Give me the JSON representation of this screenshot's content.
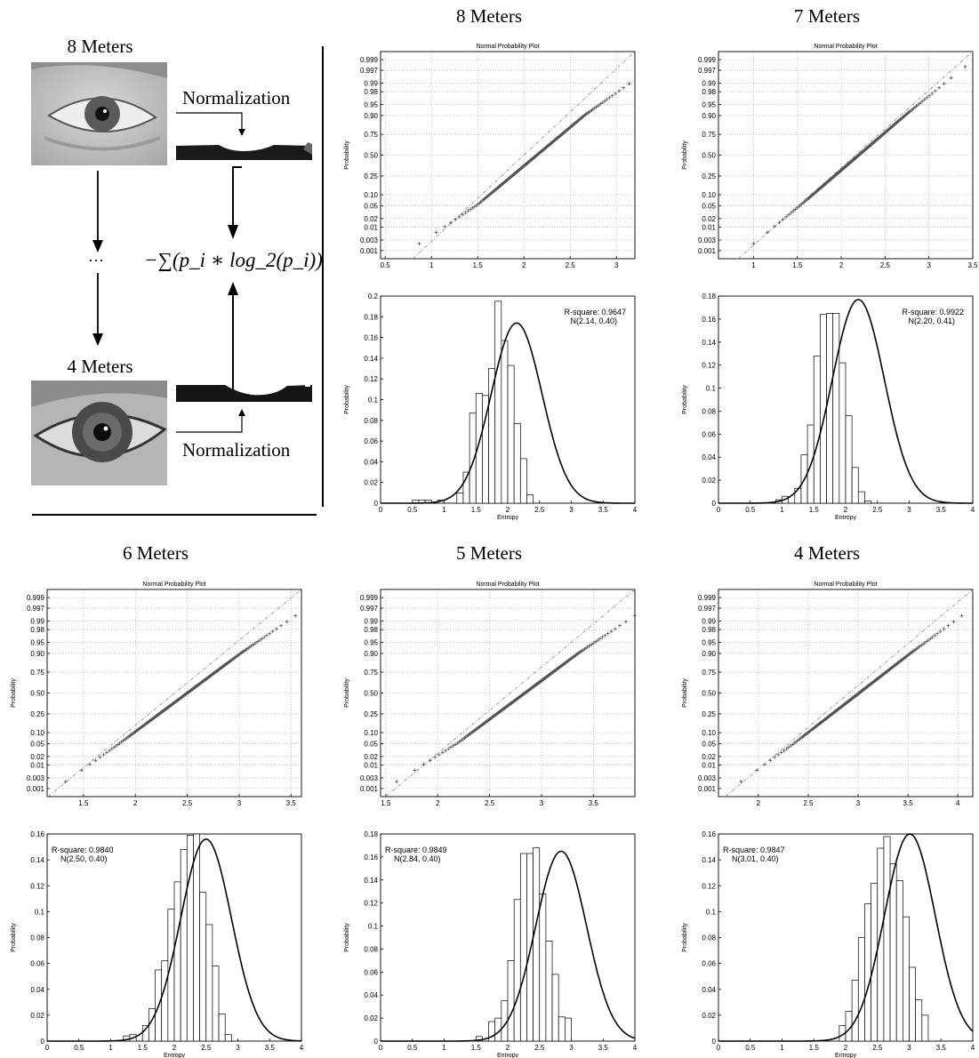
{
  "diagram": {
    "top_label": "8 Meters",
    "bottom_label": "4 Meters",
    "norm_top": "Normalization",
    "norm_bottom": "Normalization",
    "ellipsis": "···",
    "formula": "−∑(p_i ∗ log_2(p_i))"
  },
  "colors": {
    "ink": "#000000",
    "marker": "#555555",
    "refline": "#888888",
    "grid": "#999999"
  },
  "chart_data": [
    {
      "heading": "8 Meters",
      "type": "scatter",
      "title": "Normal Probability Plot",
      "ylabel": "Probability",
      "xlim": [
        0.45,
        3.2
      ],
      "xticks": [
        0.5,
        1,
        1.5,
        2,
        2.5,
        3
      ],
      "yticks": [
        0.001,
        0.003,
        0.01,
        0.02,
        0.05,
        0.1,
        0.25,
        0.5,
        0.75,
        0.9,
        0.95,
        0.98,
        0.99,
        0.997,
        0.999
      ],
      "ytick_labels": [
        "0.001",
        "0.003",
        "0.01",
        "0.02",
        "0.05",
        "0.10",
        "0.25",
        "0.50",
        "0.75",
        "0.90",
        "0.95",
        "0.98",
        "0.99",
        "0.997",
        "0.999"
      ],
      "fit": {
        "mean": 2.14,
        "sd": 0.4
      },
      "bend_high": 0.3,
      "bend_low": 0.5
    },
    {
      "heading": "",
      "type": "bar",
      "ylabel": "Probability",
      "xlabel": "Entropy",
      "xlim": [
        0,
        4
      ],
      "ylim": [
        0,
        0.2
      ],
      "xticks": [
        0,
        0.5,
        1,
        1.5,
        2,
        2.5,
        3,
        3.5,
        4
      ],
      "yticks": [
        0,
        0.02,
        0.04,
        0.06,
        0.08,
        0.1,
        0.12,
        0.14,
        0.16,
        0.18,
        0.2
      ],
      "ytick_labels": [
        "0",
        "0.02",
        "0.04",
        "0.06",
        "0.08",
        "0.1",
        "0.12",
        "0.14",
        "0.16",
        "0.18",
        "0.2"
      ],
      "annotation": [
        "R-square: 0.9647",
        "N(2.14, 0.40)"
      ],
      "annot_pos": "right",
      "bins": [
        {
          "x": 0.55,
          "h": 0.003
        },
        {
          "x": 0.65,
          "h": 0.003
        },
        {
          "x": 0.75,
          "h": 0.003
        },
        {
          "x": 0.85,
          "h": 0.0
        },
        {
          "x": 0.95,
          "h": 0.003
        },
        {
          "x": 1.05,
          "h": 0.0
        },
        {
          "x": 1.25,
          "h": 0.01
        },
        {
          "x": 1.35,
          "h": 0.03
        },
        {
          "x": 1.45,
          "h": 0.087
        },
        {
          "x": 1.55,
          "h": 0.106
        },
        {
          "x": 1.65,
          "h": 0.104
        },
        {
          "x": 1.75,
          "h": 0.13
        },
        {
          "x": 1.85,
          "h": 0.195
        },
        {
          "x": 1.95,
          "h": 0.157
        },
        {
          "x": 2.05,
          "h": 0.133
        },
        {
          "x": 2.15,
          "h": 0.077
        },
        {
          "x": 2.25,
          "h": 0.043
        },
        {
          "x": 2.35,
          "h": 0.008
        }
      ],
      "binw": 0.1,
      "curve": {
        "mean": 2.14,
        "sd": 0.4,
        "peak": 0.174
      }
    },
    {
      "heading": "7 Meters",
      "type": "scatter",
      "title": "Normal Probability Plot",
      "ylabel": "Probability",
      "xlim": [
        0.6,
        3.5
      ],
      "xticks": [
        1,
        1.5,
        2,
        2.5,
        3,
        3.5
      ],
      "yticks": [
        0.001,
        0.003,
        0.01,
        0.02,
        0.05,
        0.1,
        0.25,
        0.5,
        0.75,
        0.9,
        0.95,
        0.98,
        0.99,
        0.997,
        0.999
      ],
      "ytick_labels": [
        "0.001",
        "0.003",
        "0.01",
        "0.02",
        "0.05",
        "0.10",
        "0.25",
        "0.50",
        "0.75",
        "0.90",
        "0.95",
        "0.98",
        "0.99",
        "0.997",
        "0.999"
      ],
      "fit": {
        "mean": 2.2,
        "sd": 0.41
      },
      "bend_high": 0.1,
      "bend_low": 0.1
    },
    {
      "heading": "",
      "type": "bar",
      "ylabel": "Probability",
      "xlabel": "Entropy",
      "xlim": [
        0,
        4
      ],
      "ylim": [
        0,
        0.18
      ],
      "xticks": [
        0,
        0.5,
        1,
        1.5,
        2,
        2.5,
        3,
        3.5,
        4
      ],
      "yticks": [
        0,
        0.02,
        0.04,
        0.06,
        0.08,
        0.1,
        0.12,
        0.14,
        0.16,
        0.18
      ],
      "ytick_labels": [
        "0",
        "0.02",
        "0.04",
        "0.06",
        "0.08",
        "0.1",
        "0.12",
        "0.14",
        "0.16",
        "0.18"
      ],
      "annotation": [
        "R-square: 0.9922",
        "N(2.20, 0.41)"
      ],
      "annot_pos": "right",
      "bins": [
        {
          "x": 0.95,
          "h": 0.003
        },
        {
          "x": 1.05,
          "h": 0.006
        },
        {
          "x": 1.25,
          "h": 0.013
        },
        {
          "x": 1.35,
          "h": 0.042
        },
        {
          "x": 1.45,
          "h": 0.068
        },
        {
          "x": 1.55,
          "h": 0.128
        },
        {
          "x": 1.65,
          "h": 0.164
        },
        {
          "x": 1.75,
          "h": 0.165
        },
        {
          "x": 1.85,
          "h": 0.165
        },
        {
          "x": 1.95,
          "h": 0.122
        },
        {
          "x": 2.05,
          "h": 0.076
        },
        {
          "x": 2.15,
          "h": 0.031
        },
        {
          "x": 2.25,
          "h": 0.01
        },
        {
          "x": 2.35,
          "h": 0.002
        }
      ],
      "binw": 0.1,
      "curve": {
        "mean": 2.2,
        "sd": 0.41,
        "peak": 0.177
      }
    },
    {
      "heading": "6 Meters",
      "type": "scatter",
      "title": "Normal Probability Plot",
      "ylabel": "Probability",
      "xlim": [
        1.15,
        3.6
      ],
      "xticks": [
        1.5,
        2,
        2.5,
        3,
        3.5
      ],
      "yticks": [
        0.001,
        0.003,
        0.01,
        0.02,
        0.05,
        0.1,
        0.25,
        0.5,
        0.75,
        0.9,
        0.95,
        0.98,
        0.99,
        0.997,
        0.999
      ],
      "ytick_labels": [
        "0.001",
        "0.003",
        "0.01",
        "0.02",
        "0.05",
        "0.10",
        "0.25",
        "0.50",
        "0.75",
        "0.90",
        "0.95",
        "0.98",
        "0.99",
        "0.997",
        "0.999"
      ],
      "fit": {
        "mean": 2.5,
        "sd": 0.4
      },
      "bend_high": 0.15,
      "bend_low": 0.1
    },
    {
      "heading": "",
      "type": "bar",
      "ylabel": "Probability",
      "xlabel": "Entropy",
      "xlim": [
        0,
        4
      ],
      "ylim": [
        0,
        0.16
      ],
      "xticks": [
        0,
        0.5,
        1,
        1.5,
        2,
        2.5,
        3,
        3.5,
        4
      ],
      "yticks": [
        0,
        0.02,
        0.04,
        0.06,
        0.08,
        0.1,
        0.12,
        0.14,
        0.16
      ],
      "ytick_labels": [
        "0",
        "0.02",
        "0.04",
        "0.06",
        "0.08",
        "0.1",
        "0.12",
        "0.14",
        "0.16"
      ],
      "annotation": [
        "R-square: 0.9840",
        "N(2.50, 0.40)"
      ],
      "annot_pos": "left",
      "bins": [
        {
          "x": 1.25,
          "h": 0.004
        },
        {
          "x": 1.35,
          "h": 0.005
        },
        {
          "x": 1.55,
          "h": 0.012
        },
        {
          "x": 1.65,
          "h": 0.025
        },
        {
          "x": 1.75,
          "h": 0.055
        },
        {
          "x": 1.85,
          "h": 0.062
        },
        {
          "x": 1.95,
          "h": 0.102
        },
        {
          "x": 2.05,
          "h": 0.123
        },
        {
          "x": 2.15,
          "h": 0.148
        },
        {
          "x": 2.25,
          "h": 0.159
        },
        {
          "x": 2.35,
          "h": 0.16
        },
        {
          "x": 2.45,
          "h": 0.115
        },
        {
          "x": 2.55,
          "h": 0.09
        },
        {
          "x": 2.65,
          "h": 0.058
        },
        {
          "x": 2.75,
          "h": 0.021
        },
        {
          "x": 2.85,
          "h": 0.005
        }
      ],
      "binw": 0.1,
      "curve": {
        "mean": 2.5,
        "sd": 0.4,
        "peak": 0.156
      }
    },
    {
      "heading": "5 Meters",
      "type": "scatter",
      "title": "Normal Probability Plot",
      "ylabel": "Probability",
      "xlim": [
        1.45,
        3.9
      ],
      "xticks": [
        1.5,
        2,
        2.5,
        3,
        3.5
      ],
      "yticks": [
        0.001,
        0.003,
        0.01,
        0.02,
        0.05,
        0.1,
        0.25,
        0.5,
        0.75,
        0.9,
        0.95,
        0.98,
        0.99,
        0.997,
        0.999
      ],
      "ytick_labels": [
        "0.001",
        "0.003",
        "0.01",
        "0.02",
        "0.05",
        "0.10",
        "0.25",
        "0.50",
        "0.75",
        "0.90",
        "0.95",
        "0.98",
        "0.99",
        "0.997",
        "0.999"
      ],
      "fit": {
        "mean": 2.84,
        "sd": 0.4
      },
      "bend_high": 0.2,
      "bend_low": 0.35
    },
    {
      "heading": "",
      "type": "bar",
      "ylabel": "Probability",
      "xlabel": "Entropy",
      "xlim": [
        0,
        4
      ],
      "ylim": [
        0,
        0.18
      ],
      "xticks": [
        0,
        0.5,
        1,
        1.5,
        2,
        2.5,
        3,
        3.5,
        4
      ],
      "yticks": [
        0,
        0.02,
        0.04,
        0.06,
        0.08,
        0.1,
        0.12,
        0.14,
        0.16,
        0.18
      ],
      "ytick_labels": [
        "0",
        "0.02",
        "0.04",
        "0.06",
        "0.08",
        "0.1",
        "0.12",
        "0.14",
        "0.16",
        "0.18"
      ],
      "annotation": [
        "R-square: 0.9849",
        "N(2.84, 0.40)"
      ],
      "annot_pos": "left",
      "bins": [
        {
          "x": 1.55,
          "h": 0.004
        },
        {
          "x": 1.75,
          "h": 0.017
        },
        {
          "x": 1.85,
          "h": 0.02
        },
        {
          "x": 1.95,
          "h": 0.035
        },
        {
          "x": 2.05,
          "h": 0.07
        },
        {
          "x": 2.15,
          "h": 0.123
        },
        {
          "x": 2.25,
          "h": 0.163
        },
        {
          "x": 2.35,
          "h": 0.163
        },
        {
          "x": 2.45,
          "h": 0.168
        },
        {
          "x": 2.55,
          "h": 0.128
        },
        {
          "x": 2.65,
          "h": 0.087
        },
        {
          "x": 2.75,
          "h": 0.058
        },
        {
          "x": 2.85,
          "h": 0.021
        },
        {
          "x": 2.95,
          "h": 0.02
        }
      ],
      "binw": 0.1,
      "curve": {
        "mean": 2.84,
        "sd": 0.4,
        "peak": 0.165
      }
    },
    {
      "heading": "4 Meters",
      "type": "scatter",
      "title": "Normal Probability Plot",
      "ylabel": "Probability",
      "xlim": [
        1.6,
        4.15
      ],
      "xticks": [
        2,
        2.5,
        3,
        3.5,
        4
      ],
      "yticks": [
        0.001,
        0.003,
        0.01,
        0.02,
        0.05,
        0.1,
        0.25,
        0.5,
        0.75,
        0.9,
        0.95,
        0.98,
        0.99,
        0.997,
        0.999
      ],
      "ytick_labels": [
        "0.001",
        "0.003",
        "0.01",
        "0.02",
        "0.05",
        "0.10",
        "0.25",
        "0.50",
        "0.75",
        "0.90",
        "0.95",
        "0.98",
        "0.99",
        "0.997",
        "0.999"
      ],
      "fit": {
        "mean": 3.01,
        "sd": 0.4
      },
      "bend_high": 0.1,
      "bend_low": 0.15
    },
    {
      "heading": "",
      "type": "bar",
      "ylabel": "Probability",
      "xlabel": "Entropy",
      "xlim": [
        0,
        4
      ],
      "ylim": [
        0,
        0.16
      ],
      "xticks": [
        0,
        0.5,
        1,
        1.5,
        2,
        2.5,
        3,
        3.5,
        4
      ],
      "yticks": [
        0,
        0.02,
        0.04,
        0.06,
        0.08,
        0.1,
        0.12,
        0.14,
        0.16
      ],
      "ytick_labels": [
        "0",
        "0.02",
        "0.04",
        "0.06",
        "0.08",
        "0.1",
        "0.12",
        "0.14",
        "0.16"
      ],
      "annotation": [
        "R-square: 0.9847",
        "N(3.01, 0.40)"
      ],
      "annot_pos": "left",
      "bins": [
        {
          "x": 1.95,
          "h": 0.012
        },
        {
          "x": 2.05,
          "h": 0.023
        },
        {
          "x": 2.15,
          "h": 0.047
        },
        {
          "x": 2.25,
          "h": 0.08
        },
        {
          "x": 2.35,
          "h": 0.106
        },
        {
          "x": 2.45,
          "h": 0.122
        },
        {
          "x": 2.55,
          "h": 0.149
        },
        {
          "x": 2.65,
          "h": 0.158
        },
        {
          "x": 2.75,
          "h": 0.137
        },
        {
          "x": 2.85,
          "h": 0.124
        },
        {
          "x": 2.95,
          "h": 0.096
        },
        {
          "x": 3.05,
          "h": 0.057
        },
        {
          "x": 3.15,
          "h": 0.032
        },
        {
          "x": 3.25,
          "h": 0.02
        }
      ],
      "binw": 0.1,
      "curve": {
        "mean": 3.01,
        "sd": 0.4,
        "peak": 0.16
      }
    }
  ]
}
